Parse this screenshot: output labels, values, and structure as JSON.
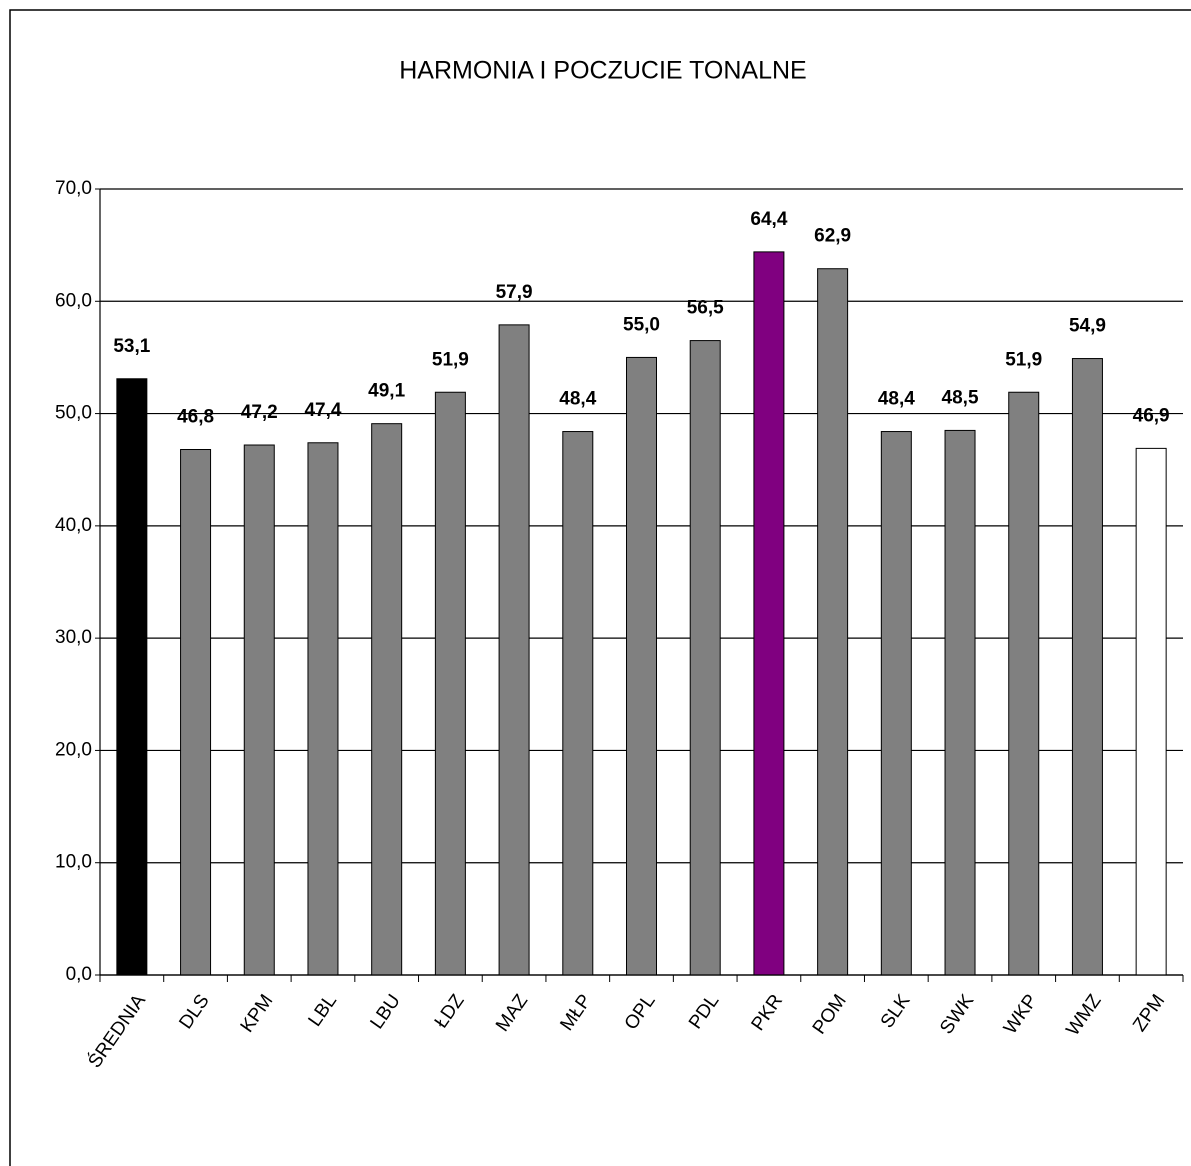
{
  "chart_data": {
    "type": "bar",
    "title": "HARMONIA I POCZUCIE TONALNE",
    "categories": [
      "ŚREDNIA",
      "DLS",
      "KPM",
      "LBL",
      "LBU",
      "ŁDZ",
      "MAZ",
      "MŁP",
      "OPL",
      "PDL",
      "PKR",
      "POM",
      "SLK",
      "SWK",
      "WKP",
      "WMZ",
      "ZPM"
    ],
    "values": [
      53.1,
      46.8,
      47.2,
      47.4,
      49.1,
      51.9,
      57.9,
      48.4,
      55.0,
      56.5,
      64.4,
      62.9,
      48.4,
      48.5,
      51.9,
      54.9,
      46.9
    ],
    "value_labels": [
      "53,1",
      "46,8",
      "47,2",
      "47,4",
      "49,1",
      "51,9",
      "57,9",
      "48,4",
      "55,0",
      "56,5",
      "64,4",
      "62,9",
      "48,4",
      "48,5",
      "51,9",
      "54,9",
      "46,9"
    ],
    "colors": [
      "#000000",
      "#808080",
      "#808080",
      "#808080",
      "#808080",
      "#808080",
      "#808080",
      "#808080",
      "#808080",
      "#808080",
      "#800080",
      "#808080",
      "#808080",
      "#808080",
      "#808080",
      "#808080",
      "#ffffff"
    ],
    "ylim": [
      0,
      70
    ],
    "yticks": [
      {
        "value": 0,
        "label": "0,0"
      },
      {
        "value": 10,
        "label": "10,0"
      },
      {
        "value": 20,
        "label": "20,0"
      },
      {
        "value": 30,
        "label": "30,0"
      },
      {
        "value": 40,
        "label": "40,0"
      },
      {
        "value": 50,
        "label": "50,0"
      },
      {
        "value": 60,
        "label": "60,0"
      },
      {
        "value": 70,
        "label": "70,0"
      }
    ],
    "grid": true
  }
}
